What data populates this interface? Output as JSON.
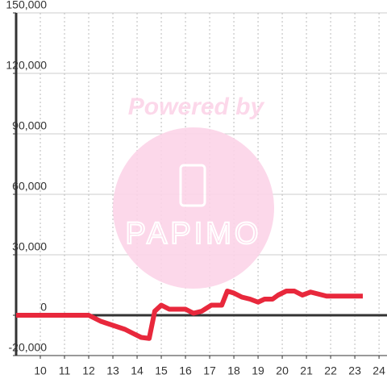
{
  "chart_data": {
    "type": "line",
    "x": [
      9,
      12,
      12.5,
      13,
      13.5,
      13.83,
      14.17,
      14.5,
      14.73,
      15,
      15.33,
      16,
      16.33,
      16.67,
      17.07,
      17.5,
      17.73,
      18,
      18.33,
      18.67,
      19,
      19.27,
      19.6,
      19.83,
      20.17,
      20.5,
      20.83,
      21.17,
      21.5,
      21.83,
      23.33
    ],
    "series": [
      {
        "color": "#e8283c",
        "values": [
          0,
          0,
          -3000,
          -5000,
          -7000,
          -9000,
          -11000,
          -11500,
          2000,
          5000,
          3000,
          3000,
          1000,
          2000,
          5000,
          5000,
          12000,
          11000,
          9000,
          8000,
          6500,
          8000,
          8000,
          10000,
          12000,
          12000,
          10000,
          11500,
          10500,
          9500,
          9500
        ]
      }
    ],
    "xlim": [
      9,
      24.33
    ],
    "xticks": [
      10,
      11,
      12,
      13,
      14,
      15,
      16,
      17,
      18,
      19,
      20,
      21,
      22,
      23,
      24
    ],
    "ylim": [
      -20000,
      150000
    ],
    "yticks": [
      {
        "value": -20000,
        "label": "-20,000"
      },
      0,
      {
        "value": 30000,
        "label": "30,000"
      },
      {
        "value": 60000,
        "label": "60,000"
      },
      {
        "value": 90000,
        "label": "90,000"
      },
      {
        "value": 120000,
        "label": "120,000"
      },
      {
        "value": 150000,
        "label": "150,000"
      }
    ],
    "grid": true
  },
  "watermark": {
    "text": "Powered by",
    "logo": "PAPIMO"
  }
}
